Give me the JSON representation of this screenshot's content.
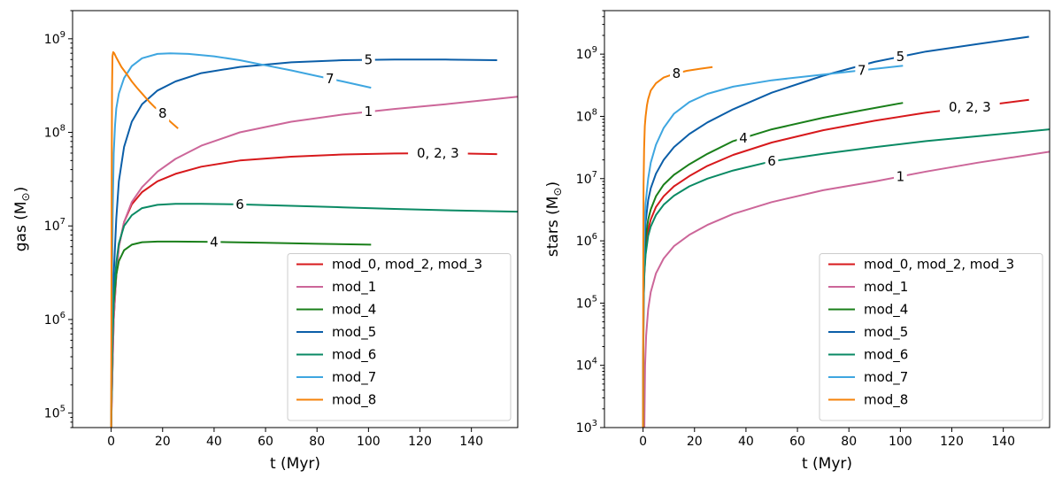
{
  "colors": {
    "mod_0_2_3": "#d7191c",
    "mod_1": "#cc6699",
    "mod_4": "#1a7f1a",
    "mod_5": "#0b5ea8",
    "mod_6": "#0a8a64",
    "mod_7": "#3ea6e0",
    "mod_8": "#f5820a"
  },
  "chart_data": [
    {
      "type": "line",
      "panel": "left",
      "title": "",
      "xlabel": "t (Myr)",
      "ylabel": "gas (M_sun)",
      "ylabel_parts": {
        "base": "gas (M",
        "sub": "⊙",
        "close": ")"
      },
      "xscale": "linear",
      "yscale": "log",
      "xlim": [
        -15,
        158
      ],
      "ylim": [
        70000,
        2000000000
      ],
      "xticks": [
        0,
        20,
        40,
        60,
        80,
        100,
        120,
        140
      ],
      "xtick_labels": [
        "0",
        "20",
        "40",
        "60",
        "80",
        "100",
        "120",
        "140"
      ],
      "yticks_exp": [
        5,
        6,
        7,
        8,
        9
      ],
      "ytick_base": "10",
      "legend": {
        "loc": "lower right",
        "entries": [
          {
            "label": "mod_0, mod_2, mod_3",
            "color_key": "mod_0_2_3"
          },
          {
            "label": "mod_1",
            "color_key": "mod_1"
          },
          {
            "label": "mod_4",
            "color_key": "mod_4"
          },
          {
            "label": "mod_5",
            "color_key": "mod_5"
          },
          {
            "label": "mod_6",
            "color_key": "mod_6"
          },
          {
            "label": "mod_7",
            "color_key": "mod_7"
          },
          {
            "label": "mod_8",
            "color_key": "mod_8"
          }
        ]
      },
      "series": [
        {
          "name": "mod_0, mod_2, mod_3",
          "color_key": "mod_0_2_3",
          "inline_label": "0, 2, 3",
          "label_at_x": 127,
          "x": [
            0,
            0.5,
            1,
            2,
            3,
            5,
            8,
            12,
            18,
            25,
            35,
            50,
            70,
            90,
            110,
            130,
            150
          ],
          "y": [
            70000,
            300000,
            1000000,
            3000000,
            6000000,
            11000000,
            17000000,
            23000000,
            30000000,
            36000000,
            43000000,
            50000000,
            55000000,
            58000000,
            59500000,
            60000000,
            58500000
          ]
        },
        {
          "name": "mod_1",
          "color_key": "mod_1",
          "inline_label": "1",
          "label_at_x": 100,
          "x": [
            0,
            0.5,
            1,
            2,
            3,
            5,
            8,
            12,
            18,
            25,
            35,
            50,
            70,
            90,
            110,
            130,
            158
          ],
          "y": [
            70000,
            300000,
            1000000,
            3000000,
            6000000,
            11000000,
            18000000,
            26000000,
            38000000,
            52000000,
            72000000,
            100000000,
            130000000,
            155000000,
            178000000,
            200000000,
            240000000
          ]
        },
        {
          "name": "mod_4",
          "color_key": "mod_4",
          "inline_label": "4",
          "label_at_x": 40,
          "x": [
            0,
            0.5,
            1,
            2,
            3,
            5,
            8,
            12,
            18,
            25,
            40,
            60,
            80,
            101
          ],
          "y": [
            70000,
            600000,
            1500000,
            3000000,
            4200000,
            5500000,
            6300000,
            6700000,
            6800000,
            6800000,
            6750000,
            6600000,
            6450000,
            6300000
          ]
        },
        {
          "name": "mod_5",
          "color_key": "mod_5",
          "inline_label": "5",
          "label_at_x": 100,
          "x": [
            0,
            0.5,
            1,
            2,
            3,
            5,
            8,
            12,
            18,
            25,
            35,
            50,
            70,
            90,
            110,
            130,
            150
          ],
          "y": [
            70000,
            800000,
            3000000,
            12000000,
            30000000,
            70000000,
            130000000,
            200000000,
            280000000,
            350000000,
            430000000,
            500000000,
            560000000,
            590000000,
            600000000,
            600000000,
            590000000
          ]
        },
        {
          "name": "mod_6",
          "color_key": "mod_6",
          "inline_label": "6",
          "label_at_x": 50,
          "x": [
            0,
            0.5,
            1,
            2,
            3,
            5,
            8,
            12,
            18,
            25,
            35,
            50,
            70,
            90,
            110,
            130,
            158
          ],
          "y": [
            70000,
            600000,
            1800000,
            4000000,
            6500000,
            10000000,
            13000000,
            15500000,
            16800000,
            17200000,
            17200000,
            17000000,
            16400000,
            15800000,
            15200000,
            14700000,
            14200000
          ]
        },
        {
          "name": "mod_7",
          "color_key": "mod_7",
          "inline_label": "7",
          "label_at_x": 85,
          "x": [
            0,
            0.3,
            0.6,
            1,
            1.5,
            2,
            3,
            5,
            8,
            12,
            18,
            23,
            30,
            40,
            50,
            60,
            70,
            80,
            90,
            101
          ],
          "y": [
            70000,
            2000000,
            15000000,
            60000000,
            120000000,
            180000000,
            260000000,
            380000000,
            510000000,
            620000000,
            690000000,
            700000000,
            690000000,
            650000000,
            590000000,
            520000000,
            460000000,
            400000000,
            350000000,
            300000000
          ]
        },
        {
          "name": "mod_8",
          "color_key": "mod_8",
          "inline_label": "8",
          "label_at_x": 20,
          "x": [
            0,
            0.1,
            0.2,
            0.35,
            0.5,
            0.8,
            1.2,
            2,
            4,
            6,
            8,
            10,
            12,
            15,
            17,
            20,
            23,
            26
          ],
          "y": [
            70000,
            1000000,
            30000000,
            300000000,
            650000000,
            720000000,
            700000000,
            630000000,
            500000000,
            420000000,
            350000000,
            300000000,
            260000000,
            210000000,
            185000000,
            160000000,
            130000000,
            110000000
          ]
        }
      ]
    },
    {
      "type": "line",
      "panel": "right",
      "title": "",
      "xlabel": "t (Myr)",
      "ylabel": "stars (M_sun)",
      "ylabel_parts": {
        "base": "stars (M",
        "sub": "⊙",
        "close": ")"
      },
      "xscale": "linear",
      "yscale": "log",
      "xlim": [
        -15,
        158
      ],
      "ylim": [
        1000,
        5000000000
      ],
      "xticks": [
        0,
        20,
        40,
        60,
        80,
        100,
        120,
        140
      ],
      "xtick_labels": [
        "0",
        "20",
        "40",
        "60",
        "80",
        "100",
        "120",
        "140"
      ],
      "yticks_exp": [
        3,
        4,
        5,
        6,
        7,
        8,
        9
      ],
      "ytick_base": "10",
      "legend": {
        "loc": "lower right",
        "entries": [
          {
            "label": "mod_0, mod_2, mod_3",
            "color_key": "mod_0_2_3"
          },
          {
            "label": "mod_1",
            "color_key": "mod_1"
          },
          {
            "label": "mod_4",
            "color_key": "mod_4"
          },
          {
            "label": "mod_5",
            "color_key": "mod_5"
          },
          {
            "label": "mod_6",
            "color_key": "mod_6"
          },
          {
            "label": "mod_7",
            "color_key": "mod_7"
          },
          {
            "label": "mod_8",
            "color_key": "mod_8"
          }
        ]
      },
      "series": [
        {
          "name": "mod_0, mod_2, mod_3",
          "color_key": "mod_0_2_3",
          "inline_label": "0, 2, 3",
          "label_at_x": 127,
          "x": [
            0,
            0.2,
            0.5,
            1,
            2,
            3,
            5,
            8,
            12,
            18,
            25,
            35,
            50,
            70,
            90,
            110,
            130,
            150
          ],
          "y": [
            1000,
            100000,
            300000,
            700000,
            1500000,
            2200000,
            3500000,
            5200000,
            7500000,
            11000000,
            16000000,
            24000000,
            38000000,
            60000000,
            85000000,
            115000000,
            145000000,
            185000000
          ]
        },
        {
          "name": "mod_1",
          "color_key": "mod_1",
          "inline_label": "1",
          "label_at_x": 100,
          "x": [
            0.5,
            0.8,
            1.2,
            2,
            3,
            5,
            8,
            12,
            18,
            25,
            35,
            50,
            70,
            90,
            110,
            130,
            158
          ],
          "y": [
            1000,
            10000,
            30000,
            80000,
            150000,
            300000,
            520000,
            820000,
            1250000,
            1800000,
            2700000,
            4200000,
            6500000,
            9000000,
            13000000,
            18000000,
            27000000
          ]
        },
        {
          "name": "mod_4",
          "color_key": "mod_4",
          "inline_label": "4",
          "label_at_x": 39,
          "x": [
            0,
            0.2,
            0.5,
            1,
            2,
            3,
            5,
            8,
            12,
            18,
            25,
            35,
            50,
            70,
            85,
            101
          ],
          "y": [
            1000,
            150000,
            500000,
            1100000,
            2200000,
            3200000,
            5200000,
            8000000,
            11500000,
            17000000,
            25000000,
            40000000,
            62000000,
            95000000,
            125000000,
            165000000
          ]
        },
        {
          "name": "mod_5",
          "color_key": "mod_5",
          "inline_label": "5",
          "label_at_x": 100,
          "x": [
            0,
            0.2,
            0.5,
            1,
            2,
            3,
            5,
            8,
            12,
            18,
            25,
            35,
            50,
            70,
            90,
            110,
            130,
            150
          ],
          "y": [
            1000,
            200000,
            800000,
            2000000,
            4500000,
            7000000,
            12000000,
            20000000,
            32000000,
            52000000,
            80000000,
            130000000,
            240000000,
            450000000,
            750000000,
            1100000000,
            1450000000,
            1900000000
          ]
        },
        {
          "name": "mod_6",
          "color_key": "mod_6",
          "inline_label": "6",
          "label_at_x": 50,
          "x": [
            0,
            0.2,
            0.5,
            1,
            2,
            3,
            5,
            8,
            12,
            18,
            25,
            35,
            50,
            70,
            90,
            110,
            130,
            158
          ],
          "y": [
            1000,
            100000,
            300000,
            600000,
            1200000,
            1700000,
            2600000,
            3800000,
            5300000,
            7500000,
            10000000,
            13500000,
            19000000,
            25000000,
            32000000,
            40000000,
            48000000,
            62000000
          ]
        },
        {
          "name": "mod_7",
          "color_key": "mod_7",
          "inline_label": "7",
          "label_at_x": 85,
          "x": [
            0,
            0.2,
            0.5,
            1,
            2,
            3,
            5,
            8,
            12,
            18,
            25,
            35,
            50,
            70,
            85,
            101
          ],
          "y": [
            1000,
            300000,
            1500000,
            4000000,
            10000000,
            18000000,
            35000000,
            65000000,
            110000000,
            170000000,
            230000000,
            300000000,
            380000000,
            470000000,
            550000000,
            650000000
          ]
        },
        {
          "name": "mod_8",
          "color_key": "mod_8",
          "inline_label": "8",
          "label_at_x": 13,
          "x": [
            0,
            0.05,
            0.1,
            0.2,
            0.4,
            0.7,
            1,
            1.5,
            2,
            3,
            5,
            8,
            12,
            17,
            22,
            27
          ],
          "y": [
            1000,
            100000,
            1000000,
            8000000,
            30000000,
            70000000,
            100000000,
            150000000,
            190000000,
            260000000,
            340000000,
            420000000,
            480000000,
            540000000,
            580000000,
            620000000
          ]
        }
      ]
    }
  ]
}
